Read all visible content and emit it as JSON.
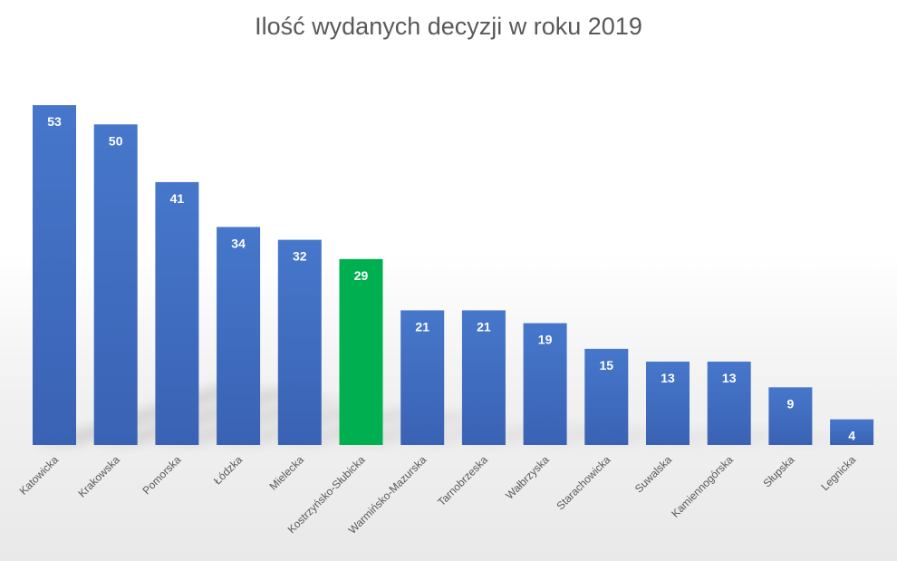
{
  "chart_data": {
    "type": "bar",
    "title": "Ilość wydanych decyzji w roku 2019",
    "categories": [
      "Katowicka",
      "Krakowska",
      "Pomorska",
      "Łódzka",
      "Mielecka",
      "Kostrzyńsko-Słubicka",
      "Warmińsko-Mazurska",
      "Tarnobrzeska",
      "Wałbrzyska",
      "Starachowicka",
      "Suwalska",
      "Kamiennogórska",
      "Słupska",
      "Legnicka"
    ],
    "values": [
      53,
      50,
      41,
      34,
      32,
      29,
      21,
      21,
      19,
      15,
      13,
      13,
      9,
      4
    ],
    "highlight_category": "Kostrzyńsko-Słubicka",
    "colors": {
      "bar": "#4472c4",
      "highlight": "#00b050",
      "label": "#ffffff",
      "title": "#595959"
    },
    "data_labels": true,
    "grid": false,
    "legend": "none",
    "xlabel": "",
    "ylabel": ""
  }
}
